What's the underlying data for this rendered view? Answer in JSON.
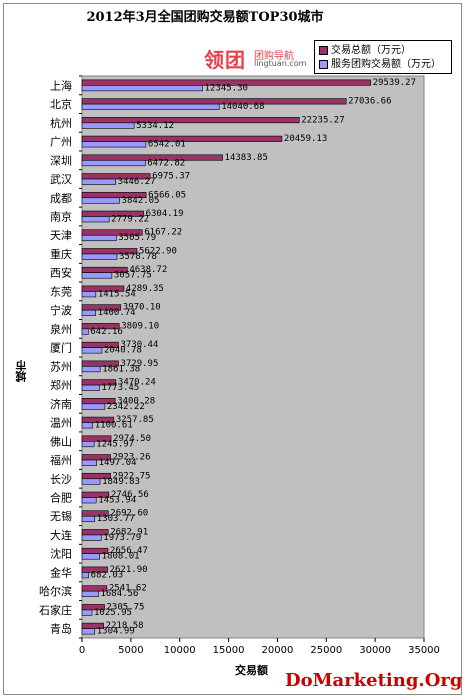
{
  "chart_data": {
    "type": "bar",
    "orientation": "horizontal",
    "title": "2012年3月全国团购交易额TOP30城市",
    "xlabel": "交易额",
    "ylabel": "城市",
    "xlim": [
      0,
      35000
    ],
    "xticks": [
      0,
      5000,
      10000,
      15000,
      20000,
      25000,
      30000,
      35000
    ],
    "grid": false,
    "legend_position": "top-right",
    "categories": [
      "上海",
      "北京",
      "杭州",
      "广州",
      "深圳",
      "武汉",
      "成都",
      "南京",
      "天津",
      "重庆",
      "西安",
      "东莞",
      "宁波",
      "泉州",
      "厦门",
      "苏州",
      "郑州",
      "济南",
      "温州",
      "佛山",
      "福州",
      "长沙",
      "合肥",
      "无锡",
      "大连",
      "沈阳",
      "金华",
      "哈尔滨",
      "石家庄",
      "青岛"
    ],
    "series": [
      {
        "name": "交易总额（万元）",
        "color": "#993366",
        "values": [
          29539.27,
          27036.66,
          22235.27,
          20459.13,
          14383.85,
          6975.37,
          6566.05,
          6304.19,
          6167.22,
          5622.9,
          4638.72,
          4289.35,
          3970.1,
          3809.1,
          3730.44,
          3729.95,
          3470.24,
          3400.28,
          3257.85,
          2974.5,
          2923.26,
          2922.75,
          2746.56,
          2692.6,
          2682.91,
          2656.47,
          2621.9,
          2541.62,
          2305.75,
          2218.58
        ],
        "labels": [
          "29539.27",
          "27036.66",
          "22235.27",
          "20459.13",
          "14383.85",
          "6975.37",
          "6566.05",
          "6304.19",
          "6167.22",
          "5622.90",
          "4638.72",
          "4289.35",
          "3970.10",
          "3809.10",
          "3730.44",
          "3729.95",
          "3470.24",
          "3400.28",
          "3257.85",
          "2974.50",
          "2923.26",
          "2922.75",
          "2746.56",
          "2692.60",
          "2682.91",
          "2656.47",
          "2621.90",
          "2541.62",
          "2305.75",
          "2218.58"
        ]
      },
      {
        "name": "服务团购交易额（万元）",
        "color": "#9999ff",
        "values": [
          12345.3,
          14040.68,
          5334.12,
          6542.01,
          6472.82,
          3446.27,
          3842.05,
          2779.22,
          3505.79,
          3578.78,
          3057.75,
          1415.54,
          1400.74,
          642.16,
          2040.78,
          1861.38,
          1773.45,
          2342.22,
          1100.61,
          1245.97,
          1497.04,
          1849.83,
          1453.94,
          1303.77,
          1973.79,
          1808.01,
          682.03,
          1684.56,
          1025.95,
          1304.99
        ],
        "labels": [
          "12345.30",
          "14040.68",
          "5334.12",
          "6542.01",
          "6472.82",
          "3446.27",
          "3842.05",
          "2779.22",
          "3505.79",
          "3578.78",
          "3057.75",
          "1415.54",
          "1400.74",
          "642.16",
          "2040.78",
          "1861.38",
          "1773.45",
          "2342.22",
          "1100.61",
          "1245.97",
          "1497.04",
          "1849.83",
          "1453.94",
          "1303.77",
          "1973.79",
          "1808.01",
          "682.03",
          "1684.56",
          "1025.95",
          "1304.99"
        ]
      }
    ]
  },
  "branding": {
    "logo_text": "领团",
    "logo_cn": "团购导航",
    "logo_url": "lingtuan.com",
    "watermark": "DoMarketing.Org"
  },
  "colors": {
    "plot_background": "#c0c0c0",
    "total_series": "#993366",
    "service_series": "#9999ff"
  }
}
